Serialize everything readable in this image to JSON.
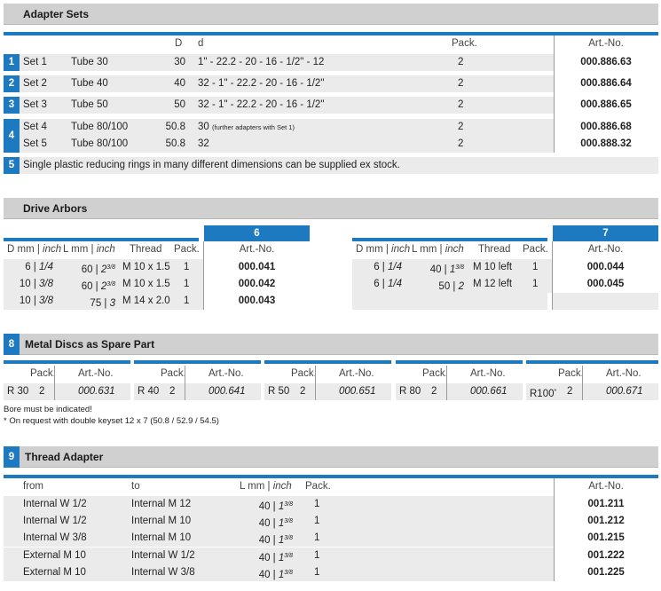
{
  "adapter_sets": {
    "title": "Adapter Sets",
    "head": {
      "D": "D",
      "d": "d",
      "pack": "Pack.",
      "artno": "Art.-No."
    },
    "rows": [
      {
        "num": "1",
        "set": "Set 1",
        "tube": "Tube 30",
        "D": "30",
        "d": "1\" - 22.2 - 20 - 16 - 1/2\" - 12",
        "pack": "2",
        "art": "000.886.63"
      },
      {
        "num": "2",
        "set": "Set 2",
        "tube": "Tube 40",
        "D": "40",
        "d": "32 - 1\" - 22.2 - 20 - 16 - 1/2\"",
        "pack": "2",
        "art": "000.886.64"
      },
      {
        "num": "3",
        "set": "Set 3",
        "tube": "Tube 50",
        "D": "50",
        "d": "32 - 1\" - 22.2 - 20 - 16 - 1/2\"",
        "pack": "2",
        "art": "000.886.65"
      },
      {
        "num": "4",
        "set": "Set 4",
        "tube": "Tube 80/100",
        "D": "50.8",
        "d": "30",
        "d_note": "(further adapters with Set 1)",
        "pack": "2",
        "art": "000.886.68"
      },
      {
        "num": "",
        "set": "Set 5",
        "tube": "Tube 80/100",
        "D": "50.8",
        "d": "32",
        "pack": "2",
        "art": "000.888.32"
      }
    ],
    "row5": {
      "num": "5",
      "text": "Single plastic reducing rings in many different dimensions can be supplied ex stock."
    }
  },
  "drive_arbors": {
    "title": "Drive Arbors",
    "left": {
      "num": "6",
      "head": {
        "D": "D mm | ",
        "D_i": "inch",
        "L": "L mm | ",
        "L_i": "inch",
        "thread": "Thread",
        "pack": "Pack.",
        "artno": "Art.-No."
      },
      "rows": [
        {
          "D": "6 | ",
          "D_i": "1/4",
          "L": "60 | ",
          "L_i": "2",
          "L_sup": "3/8",
          "thread": "M 10 x 1.5",
          "pack": "1",
          "art": "000.041"
        },
        {
          "D": "10 | ",
          "D_i": "3/8",
          "L": "60 | ",
          "L_i": "2",
          "L_sup": "3/8",
          "thread": "M 10 x 1.5",
          "pack": "1",
          "art": "000.042"
        },
        {
          "D": "10 | ",
          "D_i": "3/8",
          "L": "75 | ",
          "L_i": "3",
          "L_sup": "",
          "thread": "M 14 x 2.0",
          "pack": "1",
          "art": "000.043"
        }
      ]
    },
    "right": {
      "num": "7",
      "head": {
        "D": "D mm | ",
        "D_i": "inch",
        "L": "L mm | ",
        "L_i": "inch",
        "thread": "Thread",
        "pack": "Pack.",
        "artno": "Art.-No."
      },
      "rows": [
        {
          "D": "6 | ",
          "D_i": "1/4",
          "L": "40 | ",
          "L_i": "1",
          "L_sup": "3/8",
          "thread": "M 10 left",
          "pack": "1",
          "art": "000.044"
        },
        {
          "D": "6 | ",
          "D_i": "1/4",
          "L": "50 | ",
          "L_i": "2",
          "L_sup": "",
          "thread": "M 12 left",
          "pack": "1",
          "art": "000.045"
        }
      ]
    }
  },
  "metal_discs": {
    "num": "8",
    "title": "Metal Discs as Spare Part",
    "head": {
      "pack": "Pack.",
      "artno": "Art.-No."
    },
    "items": [
      {
        "name": "R 30",
        "star": "",
        "pack": "2",
        "art": "000.631"
      },
      {
        "name": "R 40",
        "star": "",
        "pack": "2",
        "art": "000.641"
      },
      {
        "name": "R 50",
        "star": "",
        "pack": "2",
        "art": "000.651"
      },
      {
        "name": "R 80",
        "star": "",
        "pack": "2",
        "art": "000.661"
      },
      {
        "name": "R100",
        "star": "*",
        "pack": "2",
        "art": "000.671"
      }
    ],
    "note1": "Bore must be indicated!",
    "note2": "* On request with double keyset 12 x 7 (50.8 / 52.9 / 54.5)"
  },
  "thread_adapter": {
    "num": "9",
    "title": "Thread Adapter",
    "head": {
      "from": "from",
      "to": "to",
      "L": "L mm | ",
      "L_i": "inch",
      "pack": "Pack.",
      "artno": "Art.-No."
    },
    "rows": [
      {
        "from": "Internal W 1/2",
        "to": "Internal M 12",
        "L": "40 | ",
        "L_i": "1",
        "L_sup": "3/8",
        "pack": "1",
        "art": "001.211"
      },
      {
        "from": "Internal W 1/2",
        "to": "Internal M 10",
        "L": "40 | ",
        "L_i": "1",
        "L_sup": "3/8",
        "pack": "1",
        "art": "001.212"
      },
      {
        "from": "Internal W 3/8",
        "to": "Internal M 10",
        "L": "40 | ",
        "L_i": "1",
        "L_sup": "3/8",
        "pack": "1",
        "art": "001.215"
      },
      {
        "from": "External M 10",
        "to": "Internal W 1/2",
        "L": "40 | ",
        "L_i": "1",
        "L_sup": "3/8",
        "pack": "1",
        "art": "001.222"
      },
      {
        "from": "External M 10",
        "to": "Internal W 3/8",
        "L": "40 | ",
        "L_i": "1",
        "L_sup": "3/8",
        "pack": "1",
        "art": "001.225"
      }
    ]
  },
  "colors": {
    "accent": "#1e7ac0",
    "header_gray": "#d0d0d0",
    "row_shade": "#ebebeb"
  }
}
